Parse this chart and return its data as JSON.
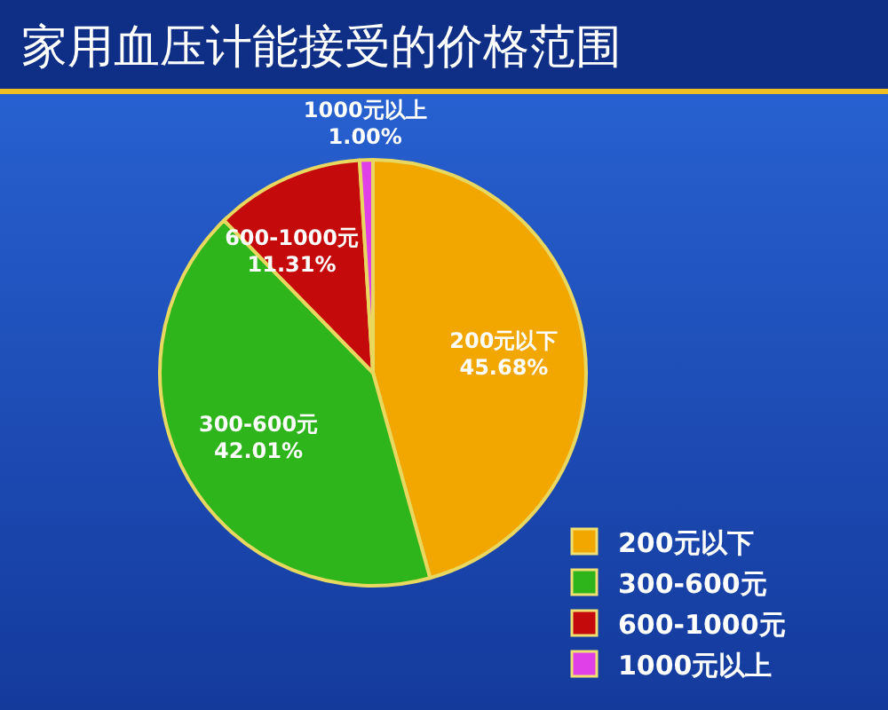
{
  "chart_data": {
    "type": "pie",
    "title": "家用血压计能接受的价格范围",
    "categories": [
      "200元以下",
      "300-600元",
      "600-1000元",
      "1000元以上"
    ],
    "values": [
      45.68,
      42.01,
      11.31,
      1.0
    ],
    "value_labels": [
      "45.68%",
      "42.01%",
      "11.31%",
      "1.00%"
    ],
    "colors": [
      "#f2a600",
      "#2fb51c",
      "#c40a0a",
      "#e040e8"
    ],
    "legend": "bottom right"
  }
}
